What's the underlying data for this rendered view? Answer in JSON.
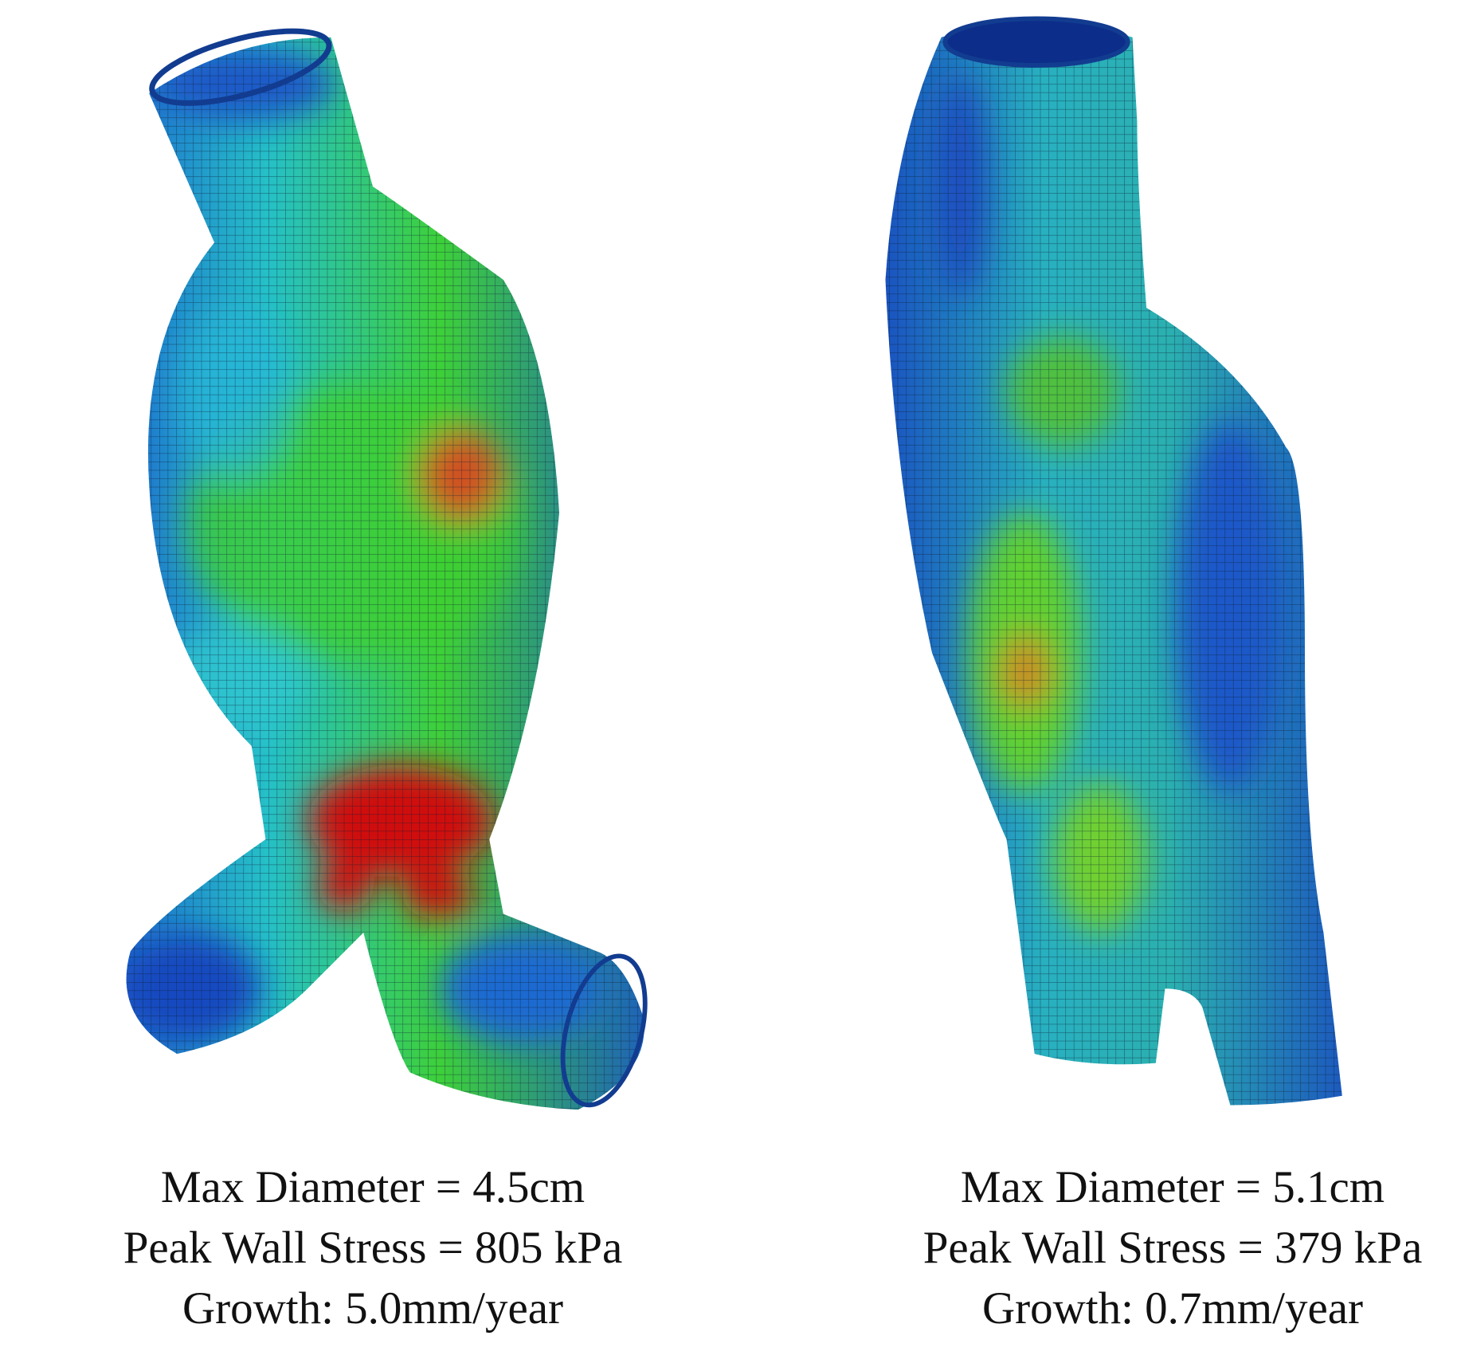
{
  "panels": [
    {
      "captions": [
        "Max Diameter = 4.5cm",
        "Peak Wall Stress = 805 kPa",
        "Growth: 5.0mm/year"
      ]
    },
    {
      "captions": [
        "Max Diameter = 5.1cm",
        "Peak Wall Stress = 379 kPa",
        "Growth: 0.7mm/year"
      ]
    }
  ]
}
